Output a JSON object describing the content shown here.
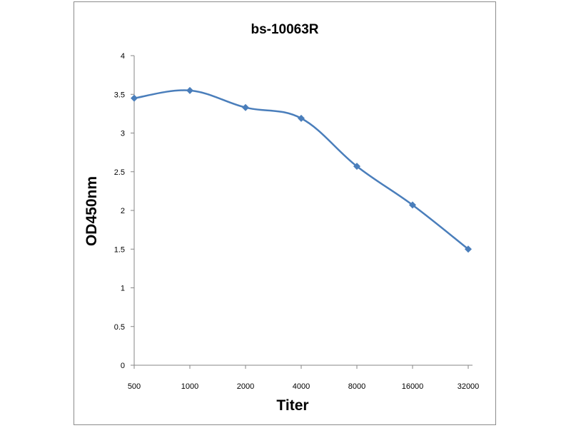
{
  "chart_data": {
    "type": "line",
    "title": "bs-10063R",
    "xlabel": "Titer",
    "ylabel": "OD450nm",
    "categories": [
      "500",
      "1000",
      "2000",
      "4000",
      "8000",
      "16000",
      "32000"
    ],
    "series": [
      {
        "values": [
          3.45,
          3.55,
          3.33,
          3.19,
          2.57,
          2.07,
          1.5
        ],
        "color": "#4a7ebb"
      }
    ],
    "ylim": [
      0,
      4
    ],
    "yticks": [
      "0",
      "0.5",
      "1",
      "1.5",
      "2",
      "2.5",
      "3",
      "3.5",
      "4"
    ],
    "grid": false,
    "legend": "none",
    "smooth": true,
    "marker": "diamond"
  }
}
